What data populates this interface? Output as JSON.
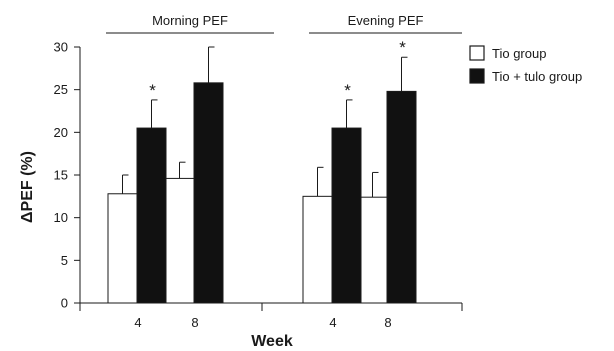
{
  "chart_data": {
    "type": "bar",
    "xlabel": "Week",
    "ylabel": "ΔPEF (%)",
    "ylim": [
      0,
      30
    ],
    "yticks": [
      0,
      5,
      10,
      15,
      20,
      25,
      30
    ],
    "groups": [
      {
        "label": "Morning PEF",
        "categories": [
          "4",
          "8"
        ]
      },
      {
        "label": "Evening PEF",
        "categories": [
          "4",
          "8"
        ]
      }
    ],
    "categories": [
      "4",
      "8",
      "4",
      "8"
    ],
    "series": [
      {
        "name": "Tio group",
        "color": "#ffffff",
        "values": [
          12.8,
          14.6,
          12.5,
          12.4
        ],
        "errors": [
          2.2,
          1.9,
          3.4,
          2.9
        ]
      },
      {
        "name": "Tio + tulo group",
        "color": "#111111",
        "values": [
          20.5,
          25.8,
          20.5,
          24.8
        ],
        "errors": [
          3.3,
          4.2,
          3.3,
          4.0
        ]
      }
    ],
    "annotations": [
      {
        "text": "*",
        "series": 1,
        "category_index": 0
      },
      {
        "text": "*",
        "series": 1,
        "category_index": 2
      },
      {
        "text": "*",
        "series": 1,
        "category_index": 3
      }
    ],
    "legend": "top-right",
    "grid": false
  }
}
